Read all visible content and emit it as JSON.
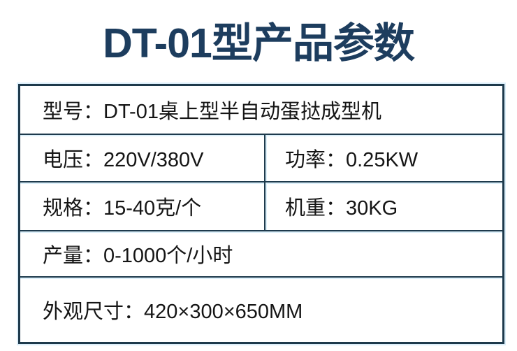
{
  "title": {
    "text": "DT-01型产品参数"
  },
  "colors": {
    "title_text": "#1d3d5e",
    "table_border": "#1e3a4c",
    "border_glow": "#ddeffa",
    "cell_text": "#151515",
    "background": "#ffffff"
  },
  "table": {
    "rows": [
      {
        "cells": [
          {
            "text": "型号：DT-01桌上型半自动蛋挞成型机",
            "label": "型号",
            "value": "DT-01桌上型半自动蛋挞成型机"
          }
        ]
      },
      {
        "cells": [
          {
            "text": "电压：220V/380V",
            "label": "电压",
            "value": "220V/380V"
          },
          {
            "text": "功率：0.25KW",
            "label": "功率",
            "value": "0.25KW"
          }
        ]
      },
      {
        "cells": [
          {
            "text": "规格：15-40克/个",
            "label": "规格",
            "value": "15-40克/个"
          },
          {
            "text": "机重：30KG",
            "label": "机重",
            "value": "30KG"
          }
        ]
      },
      {
        "cells": [
          {
            "text": "产量：0-1000个/小时",
            "label": "产量",
            "value": "0-1000个/小时"
          }
        ]
      },
      {
        "cells": [
          {
            "text": "外观尺寸：420×300×650MM",
            "label": "外观尺寸",
            "value": "420×300×650MM"
          }
        ]
      }
    ]
  }
}
